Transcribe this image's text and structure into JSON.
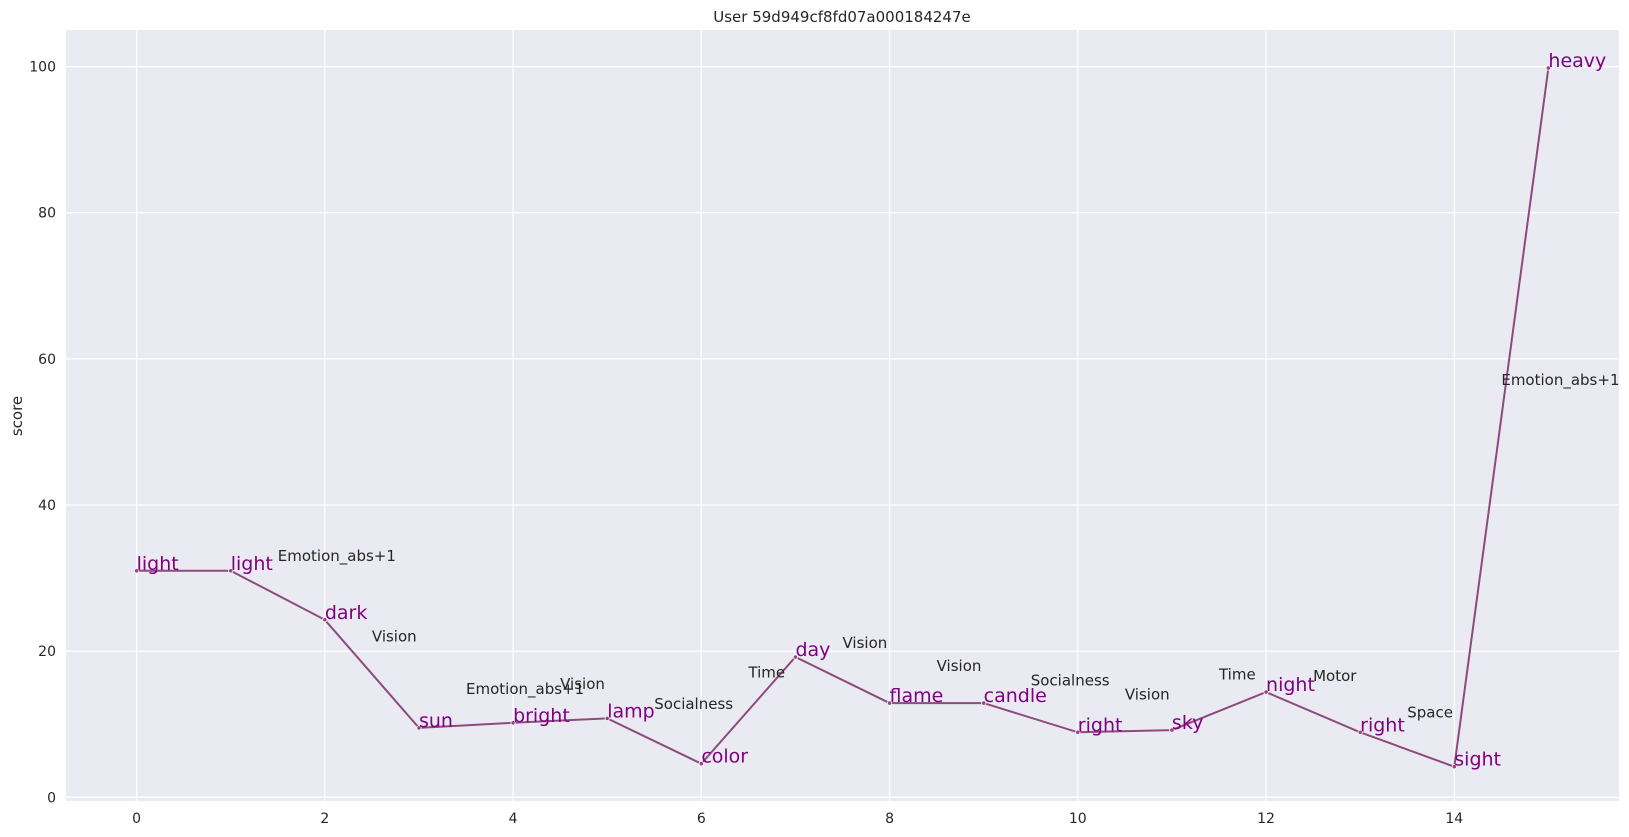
{
  "chart_data": {
    "type": "line",
    "title": "User 59d949cf8fd07a000184247e",
    "xlabel": "",
    "ylabel": "score",
    "xlim": [
      -0.75,
      15.75
    ],
    "ylim": [
      -0.5,
      105
    ],
    "x_ticks": [
      0,
      2,
      4,
      6,
      8,
      10,
      12,
      14
    ],
    "y_ticks": [
      0,
      20,
      40,
      60,
      80,
      100
    ],
    "grid": true,
    "line_color": "#8e4a7e",
    "word_color": "#800080",
    "background": "#eaeaf2",
    "points": [
      {
        "x": 0,
        "y": 31.0,
        "word": "light"
      },
      {
        "x": 1,
        "y": 31.0,
        "word": "light"
      },
      {
        "x": 2,
        "y": 24.3,
        "word": "dark"
      },
      {
        "x": 3,
        "y": 9.5,
        "word": "sun"
      },
      {
        "x": 4,
        "y": 10.2,
        "word": "bright"
      },
      {
        "x": 5,
        "y": 10.8,
        "word": "lamp"
      },
      {
        "x": 6,
        "y": 4.6,
        "word": "color"
      },
      {
        "x": 7,
        "y": 19.2,
        "word": "day"
      },
      {
        "x": 8,
        "y": 12.9,
        "word": "flame"
      },
      {
        "x": 9,
        "y": 12.9,
        "word": "candle"
      },
      {
        "x": 10,
        "y": 8.9,
        "word": "right"
      },
      {
        "x": 11,
        "y": 9.2,
        "word": "sky"
      },
      {
        "x": 12,
        "y": 14.4,
        "word": "night"
      },
      {
        "x": 13,
        "y": 8.9,
        "word": "right"
      },
      {
        "x": 14,
        "y": 4.2,
        "word": "sight"
      },
      {
        "x": 15,
        "y": 99.8,
        "word": "heavy"
      }
    ],
    "annotations": [
      {
        "x": 1.5,
        "y": 33.0,
        "text": "Emotion_abs+1"
      },
      {
        "x": 2.5,
        "y": 22.0,
        "text": "Vision"
      },
      {
        "x": 3.5,
        "y": 14.8,
        "text": "Emotion_abs+1"
      },
      {
        "x": 4.5,
        "y": 15.5,
        "text": "Vision"
      },
      {
        "x": 5.5,
        "y": 12.8,
        "text": "Socialness"
      },
      {
        "x": 6.5,
        "y": 17.1,
        "text": "Time"
      },
      {
        "x": 7.5,
        "y": 21.1,
        "text": "Vision"
      },
      {
        "x": 8.5,
        "y": 18.0,
        "text": "Vision"
      },
      {
        "x": 9.5,
        "y": 16.0,
        "text": "Socialness"
      },
      {
        "x": 10.5,
        "y": 14.1,
        "text": "Vision"
      },
      {
        "x": 11.5,
        "y": 16.8,
        "text": "Time"
      },
      {
        "x": 12.5,
        "y": 16.6,
        "text": "Motor"
      },
      {
        "x": 13.5,
        "y": 11.6,
        "text": "Space"
      },
      {
        "x": 14.5,
        "y": 57.1,
        "text": "Emotion_abs+1"
      }
    ]
  }
}
